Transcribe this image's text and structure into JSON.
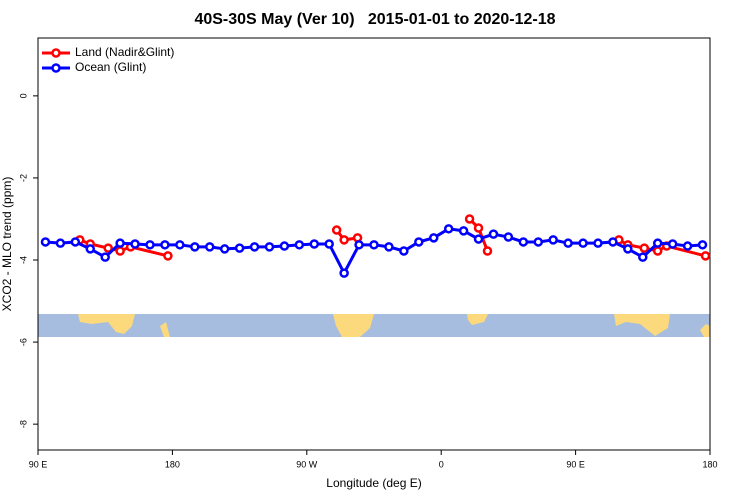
{
  "chart_data": {
    "type": "line",
    "title": "40S-30S May (Ver 10)   2015-01-01 to 2020-12-18",
    "x_label": "Longitude (deg E)",
    "y_label": "XCO2 - MLO trend (ppm)",
    "xlim": [
      90,
      540
    ],
    "ylim": [
      -8.63,
      1.41
    ],
    "xticks": [
      {
        "value": 90,
        "label": "90 E"
      },
      180,
      {
        "value": 270,
        "label": "90 W"
      },
      {
        "value": 360,
        "label": "0"
      },
      {
        "value": 450,
        "label": "90 E"
      },
      {
        "value": 540,
        "label": "180"
      }
    ],
    "yticks": [
      0,
      -2,
      -4,
      -6,
      -8
    ],
    "legend": "top-left",
    "series": [
      {
        "name": "Land (Nadir&Glint)",
        "color": "#ff0000",
        "x": [
          118,
          125,
          137,
          145,
          152,
          177,
          null,
          290,
          295,
          304,
          null,
          379,
          385,
          391,
          null,
          479,
          485,
          496,
          505,
          511,
          537
        ],
        "values": [
          -3.51,
          -3.61,
          -3.71,
          -3.78,
          -3.68,
          -3.9,
          null,
          -3.27,
          -3.51,
          -3.46,
          null,
          -3.0,
          -3.22,
          -3.78,
          null,
          -3.51,
          -3.63,
          -3.71,
          -3.78,
          -3.66,
          -3.9
        ]
      },
      {
        "name": "Ocean (Glint)",
        "color": "#0000ff",
        "x": [
          95,
          105,
          115,
          125,
          135,
          145,
          155,
          165,
          175,
          185,
          195,
          205,
          215,
          225,
          235,
          245,
          255,
          265,
          275,
          285,
          295,
          305,
          315,
          325,
          335,
          345,
          355,
          365,
          375,
          385,
          395,
          405,
          415,
          425,
          435,
          445,
          455,
          465,
          475,
          485,
          495,
          505,
          515,
          525,
          535
        ],
        "values": [
          -3.56,
          -3.59,
          -3.56,
          -3.73,
          -3.93,
          -3.59,
          -3.61,
          -3.63,
          -3.63,
          -3.63,
          -3.68,
          -3.68,
          -3.73,
          -3.71,
          -3.68,
          -3.68,
          -3.66,
          -3.63,
          -3.61,
          -3.61,
          -4.32,
          -3.63,
          -3.63,
          -3.68,
          -3.78,
          -3.56,
          -3.46,
          -3.24,
          -3.29,
          -3.49,
          -3.37,
          -3.44,
          -3.56,
          -3.56,
          -3.51,
          -3.59,
          -3.59,
          -3.59,
          -3.56,
          -3.73,
          -3.93,
          -3.59,
          -3.61,
          -3.66,
          -3.63
        ]
      }
    ]
  }
}
